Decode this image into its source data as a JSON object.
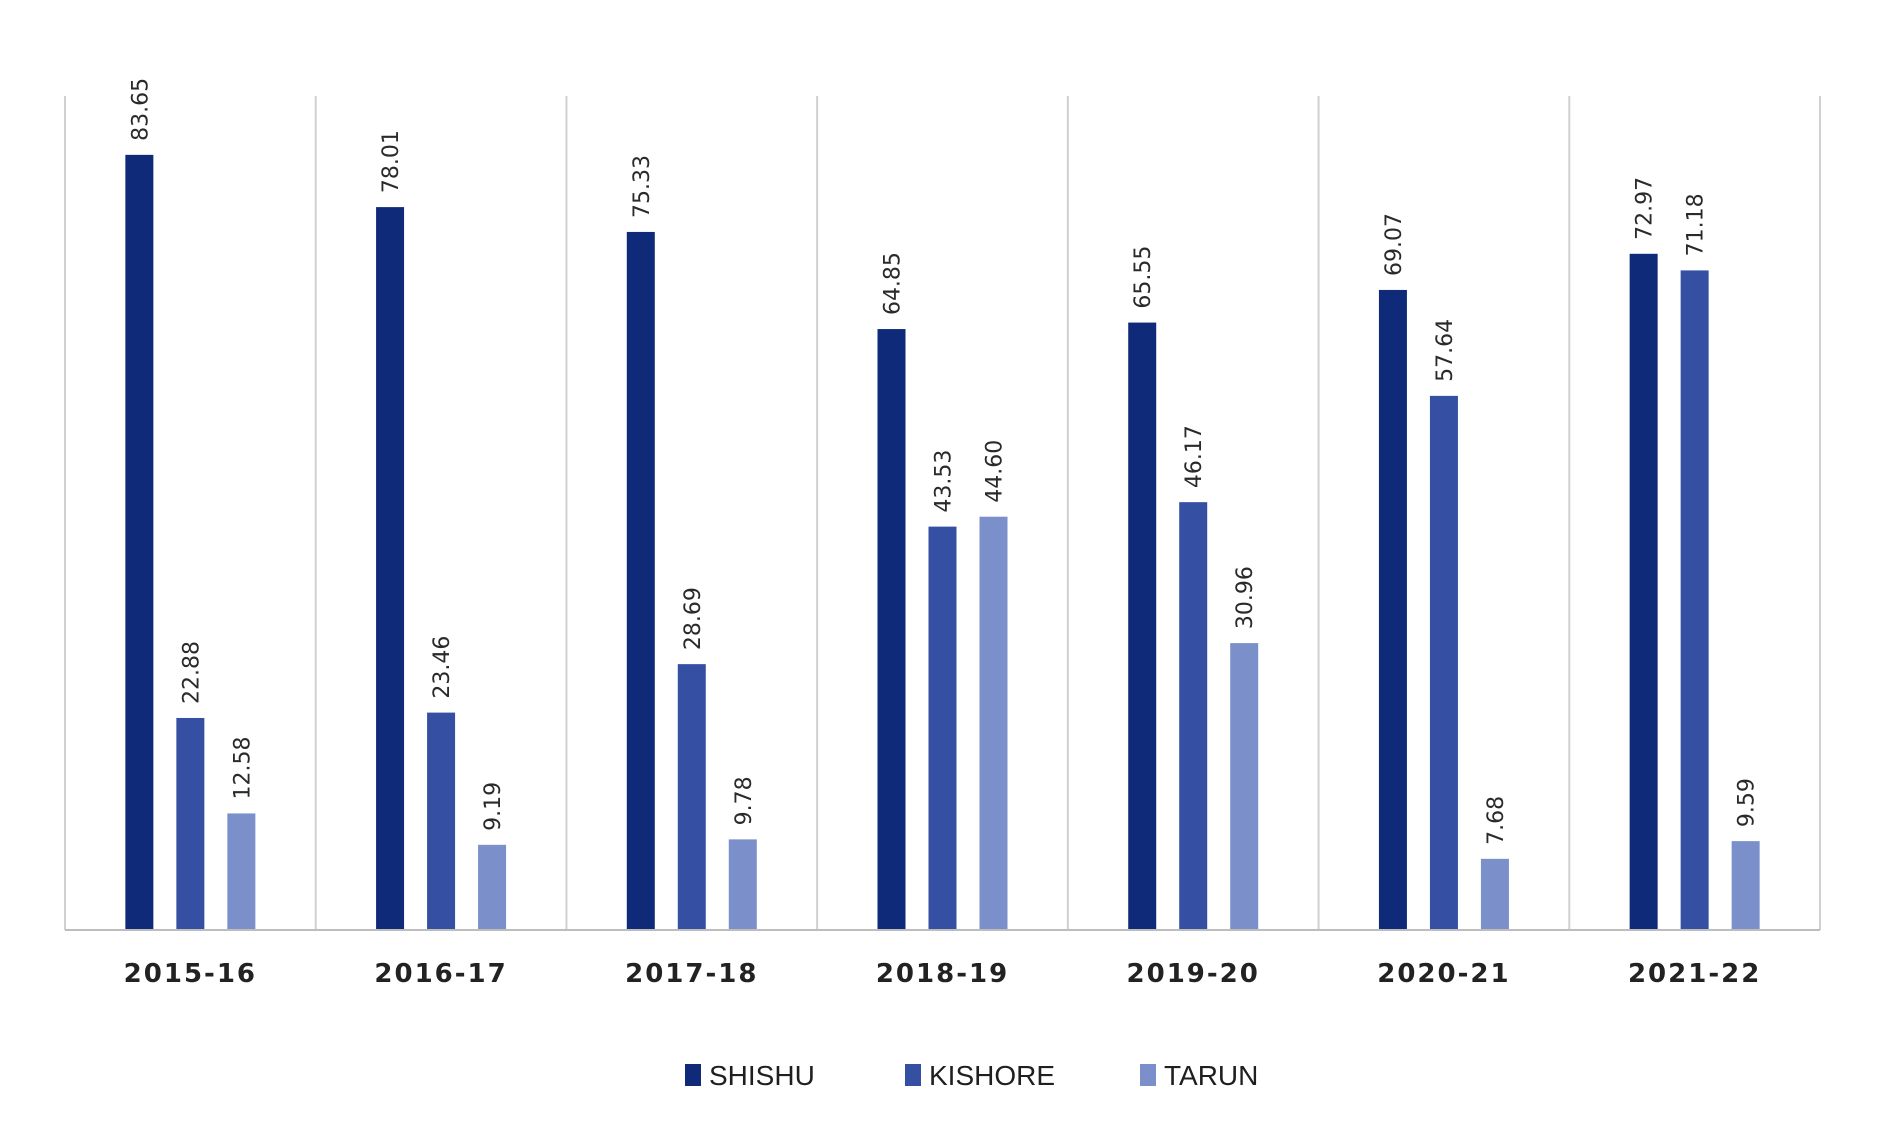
{
  "chart_data": {
    "type": "bar",
    "categories": [
      "2015-16",
      "2016-17",
      "2017-18",
      "2018-19",
      "2019-20",
      "2020-21",
      "2021-22"
    ],
    "series": [
      {
        "name": "SHISHU",
        "color": "#0f2a78",
        "values": [
          83.65,
          78.01,
          75.33,
          64.85,
          65.55,
          69.07,
          72.97
        ],
        "labels": [
          "83.65",
          "78.01",
          "75.33",
          "64.85",
          "65.55",
          "69.07",
          "72.97"
        ]
      },
      {
        "name": "KISHORE",
        "color": "#3550a3",
        "values": [
          22.88,
          23.46,
          28.69,
          43.53,
          46.17,
          57.64,
          71.18
        ],
        "labels": [
          "22.88",
          "23.46",
          "28.69",
          "43.53",
          "46.17",
          "57.64",
          "71.18"
        ]
      },
      {
        "name": "TARUN",
        "color": "#7b8fca",
        "values": [
          12.58,
          9.19,
          9.78,
          44.6,
          30.96,
          7.68,
          9.59
        ],
        "labels": [
          "12.58",
          "9.19",
          "9.78",
          "44.60",
          "30.96",
          "7.68",
          "9.59"
        ]
      }
    ],
    "title": "",
    "xlabel": "",
    "ylabel": "",
    "ylim": [
      0,
      90
    ],
    "grid": "vertical category separators",
    "legend_position": "bottom"
  }
}
